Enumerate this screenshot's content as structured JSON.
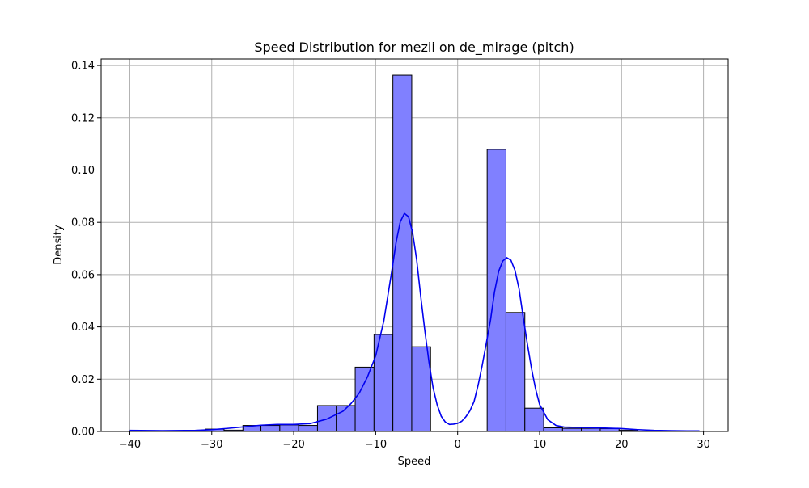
{
  "chart_data": {
    "type": "bar",
    "title": "Speed Distribution for mezii on de_mirage (pitch)",
    "xlabel": "Speed",
    "ylabel": "Density",
    "xlim": [
      -43.5,
      33.0
    ],
    "ylim": [
      0.0,
      0.1425
    ],
    "xticks": [
      -40,
      -30,
      -20,
      -10,
      0,
      10,
      20,
      30
    ],
    "yticks": [
      0.0,
      0.02,
      0.04,
      0.06,
      0.08,
      0.1,
      0.12,
      0.14
    ],
    "xtick_labels": [
      "−40",
      "−30",
      "−20",
      "−10",
      "0",
      "10",
      "20",
      "30"
    ],
    "ytick_labels": [
      "0.00",
      "0.02",
      "0.04",
      "0.06",
      "0.08",
      "0.10",
      "0.12",
      "0.14"
    ],
    "grid": true,
    "bar_color": "#8080ff",
    "bar_edge_color": "#000000",
    "kde_color": "#0000ee",
    "histogram": {
      "bins": [
        {
          "x0": -40.0,
          "x1": -37.7,
          "density": 0.0
        },
        {
          "x0": -37.7,
          "x1": -35.4,
          "density": 0.0
        },
        {
          "x0": -35.4,
          "x1": -33.1,
          "density": 0.0
        },
        {
          "x0": -33.1,
          "x1": -30.8,
          "density": 0.0
        },
        {
          "x0": -30.8,
          "x1": -28.5,
          "density": 0.0009
        },
        {
          "x0": -28.5,
          "x1": -26.2,
          "density": 0.0005
        },
        {
          "x0": -26.2,
          "x1": -24.0,
          "density": 0.0023
        },
        {
          "x0": -24.0,
          "x1": -21.7,
          "density": 0.0023
        },
        {
          "x0": -21.7,
          "x1": -19.4,
          "density": 0.0025
        },
        {
          "x0": -19.4,
          "x1": -17.1,
          "density": 0.0023
        },
        {
          "x0": -17.1,
          "x1": -14.8,
          "density": 0.0099
        },
        {
          "x0": -14.8,
          "x1": -12.5,
          "density": 0.0099
        },
        {
          "x0": -12.5,
          "x1": -10.2,
          "density": 0.0246
        },
        {
          "x0": -10.2,
          "x1": -7.9,
          "density": 0.0371
        },
        {
          "x0": -7.9,
          "x1": -5.6,
          "density": 0.1363
        },
        {
          "x0": -5.6,
          "x1": -3.3,
          "density": 0.0324
        },
        {
          "x0": -3.3,
          "x1": -1.0,
          "density": 0.0
        },
        {
          "x0": -1.0,
          "x1": 1.3,
          "density": 0.0
        },
        {
          "x0": 1.3,
          "x1": 3.6,
          "density": 0.0
        },
        {
          "x0": 3.6,
          "x1": 5.9,
          "density": 0.1079
        },
        {
          "x0": 5.9,
          "x1": 8.2,
          "density": 0.0455
        },
        {
          "x0": 8.2,
          "x1": 10.5,
          "density": 0.0089
        },
        {
          "x0": 10.5,
          "x1": 12.8,
          "density": 0.0014
        },
        {
          "x0": 12.8,
          "x1": 15.1,
          "density": 0.0012
        },
        {
          "x0": 15.1,
          "x1": 17.4,
          "density": 0.0012
        },
        {
          "x0": 17.4,
          "x1": 19.7,
          "density": 0.0011
        },
        {
          "x0": 19.7,
          "x1": 22.0,
          "density": 0.0005
        },
        {
          "x0": 22.0,
          "x1": 24.3,
          "density": 0.0
        },
        {
          "x0": 24.3,
          "x1": 26.6,
          "density": 0.0
        },
        {
          "x0": 26.6,
          "x1": 28.9,
          "density": 0.0
        }
      ]
    },
    "kde": {
      "x": [
        -40,
        -36,
        -32,
        -30,
        -28,
        -26,
        -24,
        -22,
        -20,
        -18,
        -16,
        -14,
        -13,
        -12,
        -11,
        -10,
        -9,
        -8,
        -7.5,
        -7,
        -6.5,
        -6,
        -5.5,
        -5,
        -4.5,
        -4,
        -3.5,
        -3,
        -2.5,
        -2,
        -1.5,
        -1,
        -0.5,
        0,
        0.5,
        1,
        1.5,
        2,
        2.5,
        3,
        3.5,
        4,
        4.5,
        5,
        5.5,
        6,
        6.5,
        7,
        7.5,
        8,
        8.5,
        9,
        9.5,
        10,
        11,
        12,
        13,
        14,
        16,
        18,
        20,
        22,
        24,
        26,
        28,
        29.5
      ],
      "y": [
        0.0004,
        0.0003,
        0.0004,
        0.0007,
        0.0012,
        0.0018,
        0.0024,
        0.0027,
        0.0027,
        0.003,
        0.0047,
        0.0077,
        0.0107,
        0.0147,
        0.0209,
        0.0289,
        0.0424,
        0.062,
        0.0725,
        0.0802,
        0.0834,
        0.0822,
        0.0762,
        0.0657,
        0.0516,
        0.0385,
        0.0266,
        0.0168,
        0.0102,
        0.0058,
        0.0036,
        0.0027,
        0.0028,
        0.0031,
        0.0039,
        0.0056,
        0.0079,
        0.0114,
        0.0177,
        0.0253,
        0.0338,
        0.0424,
        0.0534,
        0.0612,
        0.0652,
        0.0665,
        0.0655,
        0.0616,
        0.0544,
        0.0437,
        0.0336,
        0.0243,
        0.0164,
        0.0103,
        0.0045,
        0.0023,
        0.0017,
        0.0016,
        0.0015,
        0.0013,
        0.0011,
        0.0007,
        0.0004,
        0.0003,
        0.0002,
        0.0002
      ]
    }
  }
}
